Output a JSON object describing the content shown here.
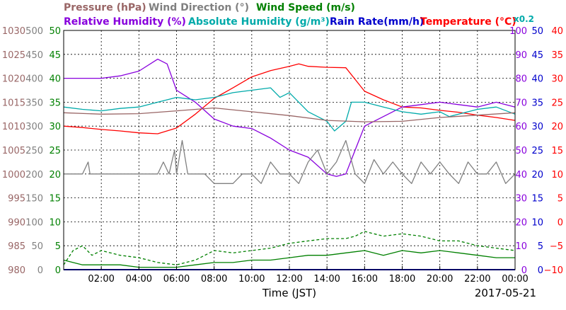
{
  "chart_data": {
    "type": "line",
    "date": "2017-05-21",
    "xlabel": "Time (JST)",
    "x_ticks": [
      "02:00",
      "04:00",
      "06:00",
      "08:00",
      "10:00",
      "12:00",
      "14:00",
      "16:00",
      "18:00",
      "20:00",
      "22:00",
      "00:00"
    ],
    "xlim_hours": [
      0,
      24
    ],
    "grid": true,
    "legend_row1": [
      {
        "text": "Pressure (hPa)",
        "color": "#996666"
      },
      {
        "text": "Wind Direction (°)",
        "color": "#808080"
      },
      {
        "text": "Wind Speed (m/s)",
        "color": "#008000"
      }
    ],
    "legend_row2": [
      {
        "text": "Relative Humidity (%)",
        "color": "#8800dd"
      },
      {
        "text": "Absolute Humidity (g/m³)",
        "color": "#00aaaa"
      },
      {
        "text": "Rain Rate(mm/h)",
        "color": "#0000cc"
      },
      {
        "text": "Temperature (°C)",
        "color": "#ff0000"
      }
    ],
    "abs_hum_scale_note": "x0.2",
    "axes": {
      "pressure": {
        "color": "#996666",
        "ticks": [
          "1030",
          "1025",
          "1020",
          "1015",
          "1010",
          "1005",
          "1000",
          "995",
          "990",
          "985",
          "980"
        ],
        "ylim": [
          980,
          1030
        ]
      },
      "wind_dir": {
        "color": "#808080",
        "ticks": [
          "500",
          "450",
          "400",
          "350",
          "300",
          "250",
          "200",
          "150",
          "100",
          "50",
          "0"
        ],
        "ylim": [
          0,
          500
        ]
      },
      "wind_speed": {
        "color": "#008000",
        "ticks": [
          "50",
          "45",
          "40",
          "35",
          "30",
          "25",
          "20",
          "15",
          "10",
          "5",
          "0"
        ],
        "ylim": [
          0,
          50
        ]
      },
      "rel_hum": {
        "color": "#8800dd",
        "ticks": [
          "100",
          "90",
          "80",
          "70",
          "60",
          "50",
          "40",
          "30",
          "20",
          "10",
          "0"
        ],
        "ylim": [
          0,
          100
        ]
      },
      "rain": {
        "color": "#0000cc",
        "ticks": [
          "50",
          "45",
          "40",
          "35",
          "30",
          "25",
          "20",
          "15",
          "10",
          "5",
          "0"
        ],
        "ylim": [
          0,
          50
        ]
      },
      "temp": {
        "color": "#ff0000",
        "ticks": [
          "40",
          "35",
          "30",
          "25",
          "20",
          "15",
          "10",
          "5",
          "0",
          "−5",
          "−10"
        ],
        "ylim": [
          -10,
          40
        ]
      }
    },
    "series": [
      {
        "name": "Temperature",
        "color": "#ff0000",
        "unit": "°C",
        "x": [
          0,
          1,
          2,
          3,
          4,
          5,
          6,
          7,
          8,
          9,
          10,
          11,
          12,
          12.5,
          13,
          14,
          15,
          16,
          17,
          18,
          19,
          20,
          21,
          22,
          23,
          24
        ],
        "y": [
          20,
          19.7,
          19.3,
          19,
          18.6,
          18.4,
          19.6,
          22.5,
          25.8,
          28,
          30.3,
          31.6,
          32.5,
          33,
          32.5,
          32.3,
          32.2,
          27.3,
          25.5,
          24,
          23.8,
          23.3,
          22.9,
          22.3,
          21.8,
          21.2
        ]
      },
      {
        "name": "Relative Humidity",
        "color": "#8800dd",
        "unit": "%",
        "x": [
          0,
          1,
          2,
          3,
          4,
          5,
          5.5,
          6,
          7,
          8,
          9,
          10,
          11,
          12,
          13,
          14,
          14.5,
          15,
          15.5,
          16,
          17,
          18,
          19,
          20,
          21,
          22,
          23,
          24
        ],
        "y": [
          80,
          80,
          80,
          81,
          83,
          88,
          86,
          75,
          70,
          63,
          60,
          59,
          55,
          50,
          47,
          40,
          39,
          40,
          50,
          60,
          64,
          68,
          69,
          70,
          69,
          68,
          70,
          68
        ]
      },
      {
        "name": "Absolute Humidity",
        "color": "#00aaaa",
        "unit": "g/m³ (x0.2)",
        "x": [
          0,
          1,
          2,
          3,
          4,
          5,
          6,
          7,
          8,
          9,
          10,
          11,
          11.5,
          12,
          13,
          14,
          14.4,
          15,
          15.3,
          16,
          17,
          18,
          19,
          20,
          20.5,
          21,
          22,
          23,
          24
        ],
        "y": [
          34,
          33.5,
          33.2,
          33.7,
          34,
          35,
          36,
          35.5,
          36,
          37,
          37.5,
          38,
          36,
          37,
          33,
          31,
          29,
          31,
          35,
          35,
          34,
          33,
          32.5,
          33,
          32,
          32.5,
          33.5,
          34,
          32.5
        ]
      },
      {
        "name": "Pressure",
        "color": "#996666",
        "unit": "hPa",
        "x": [
          0,
          2,
          4,
          6,
          8,
          10,
          12,
          14,
          16,
          18,
          20,
          22,
          24
        ],
        "y": [
          1012.8,
          1012.5,
          1012.6,
          1013.2,
          1013.8,
          1013,
          1012.2,
          1011.2,
          1010.9,
          1011,
          1011.8,
          1012.3,
          1012.8
        ]
      },
      {
        "name": "Wind Direction",
        "color": "#808080",
        "unit": "°",
        "x": [
          0,
          0.5,
          1,
          1.3,
          1.4,
          2,
          3,
          4,
          5,
          5.3,
          5.6,
          5.9,
          6,
          6.3,
          6.6,
          7,
          7.5,
          8,
          8.5,
          9,
          9.5,
          10,
          10.5,
          11,
          11.5,
          12,
          12.5,
          13,
          13.5,
          14,
          14.5,
          15,
          15.5,
          16,
          16.5,
          17,
          17.5,
          18,
          18.5,
          19,
          19.5,
          20,
          20.5,
          21,
          21.5,
          22,
          22.5,
          23,
          23.5,
          24
        ],
        "y": [
          200,
          200,
          200,
          225,
          200,
          200,
          200,
          200,
          200,
          225,
          200,
          250,
          200,
          270,
          200,
          200,
          200,
          180,
          180,
          180,
          200,
          200,
          180,
          225,
          200,
          200,
          180,
          225,
          250,
          200,
          225,
          270,
          200,
          180,
          230,
          200,
          225,
          200,
          180,
          225,
          200,
          225,
          200,
          180,
          225,
          200,
          200,
          225,
          180,
          200
        ]
      },
      {
        "name": "Wind Speed",
        "color": "#008000",
        "unit": "m/s",
        "x": [
          0,
          1,
          2,
          3,
          4,
          5,
          6,
          7,
          8,
          9,
          10,
          11,
          12,
          13,
          14,
          15,
          16,
          17,
          18,
          19,
          20,
          21,
          22,
          23,
          24
        ],
        "y": [
          2,
          1,
          1,
          1,
          0.5,
          0.5,
          0.5,
          1,
          1.5,
          1.5,
          2,
          2,
          2.5,
          3,
          3,
          3.5,
          4,
          3,
          4,
          3.5,
          4,
          3.5,
          3,
          2.5,
          2.5
        ]
      },
      {
        "name": "Wind Speed (gust)",
        "color": "#008000",
        "unit": "m/s",
        "x": [
          0,
          0.5,
          1,
          1.5,
          2,
          3,
          4,
          5,
          6,
          7,
          8,
          9,
          10,
          11,
          12,
          13,
          14,
          15,
          15.5,
          16,
          17,
          18,
          19,
          20,
          21,
          22,
          23,
          24
        ],
        "y": [
          1,
          4,
          5,
          3,
          4,
          3,
          2.5,
          1.5,
          1,
          2,
          4,
          3.5,
          4,
          4.5,
          5.5,
          6,
          6.5,
          6.5,
          7,
          8,
          7,
          7.5,
          7,
          6,
          6,
          5,
          4.5,
          4
        ]
      },
      {
        "name": "Rain Rate",
        "color": "#0000cc",
        "unit": "mm/h",
        "x": [
          0,
          24
        ],
        "y": [
          0,
          0
        ]
      }
    ]
  }
}
